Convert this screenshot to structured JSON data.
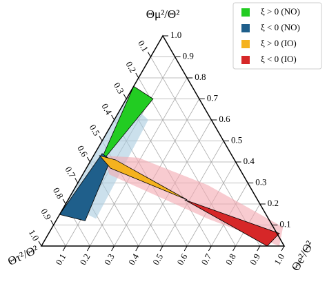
{
  "chart_data": {
    "type": "ternary",
    "axis_labels": {
      "top": "Θμ²/Θ²",
      "left": "Θτ²/Θ²",
      "right": "Θe²/Θ²"
    },
    "eticks": [
      0.1,
      0.2,
      0.3,
      0.4,
      0.5,
      0.6,
      0.7,
      0.8,
      0.9,
      {
        "value": 1,
        "label": "1.0"
      }
    ],
    "muticks": [
      0.1,
      0.2,
      0.3,
      0.4,
      0.5,
      0.6,
      0.7,
      0.8,
      0.9,
      {
        "value": 1,
        "label": "1.0"
      }
    ],
    "tauticks": [
      0.1,
      0.2,
      0.3,
      0.4,
      0.5,
      0.6,
      0.7,
      0.8,
      0.9,
      {
        "value": 1,
        "label": "1.0"
      }
    ],
    "grid": true,
    "legend": "upper right",
    "bands": [
      {
        "color": "#a9cbe0",
        "e": [
          0.0,
          0.14,
          0.16,
          0.0
        ],
        "mu": [
          0.7,
          0.6,
          0.13,
          0.2
        ]
      },
      {
        "color": "#f3a9b0",
        "e": [
          0.04,
          0.19,
          0.54,
          0.95,
          0.98,
          0.62,
          0.11
        ],
        "mu": [
          0.43,
          0.42,
          0.29,
          0.09,
          0.0,
          0.13,
          0.34
        ]
      }
    ],
    "series": [
      {
        "name": "ξ > 0 (NO)",
        "color": "#22cc22",
        "e": [
          0.0,
          0.11,
          0.05,
          0.04
        ],
        "mu": [
          0.76,
          0.7,
          0.41,
          0.42
        ]
      },
      {
        "name": "ξ < 0 (NO)",
        "color": "#1f5f8b",
        "e": [
          0.0,
          0.12,
          0.08,
          0.03
        ],
        "mu": [
          0.15,
          0.12,
          0.41,
          0.44
        ]
      },
      {
        "name": "ξ > 0 (IO)",
        "color": "#f5b21e",
        "e": [
          0.025,
          0.1,
          0.49,
          0.1
        ],
        "mu": [
          0.43,
          0.41,
          0.22,
          0.37
        ]
      },
      {
        "name": "ξ < 0 (IO)",
        "color": "#d62728",
        "e": [
          0.48,
          0.95,
          0.93
        ],
        "mu": [
          0.22,
          0.06,
          0.0
        ]
      }
    ]
  }
}
